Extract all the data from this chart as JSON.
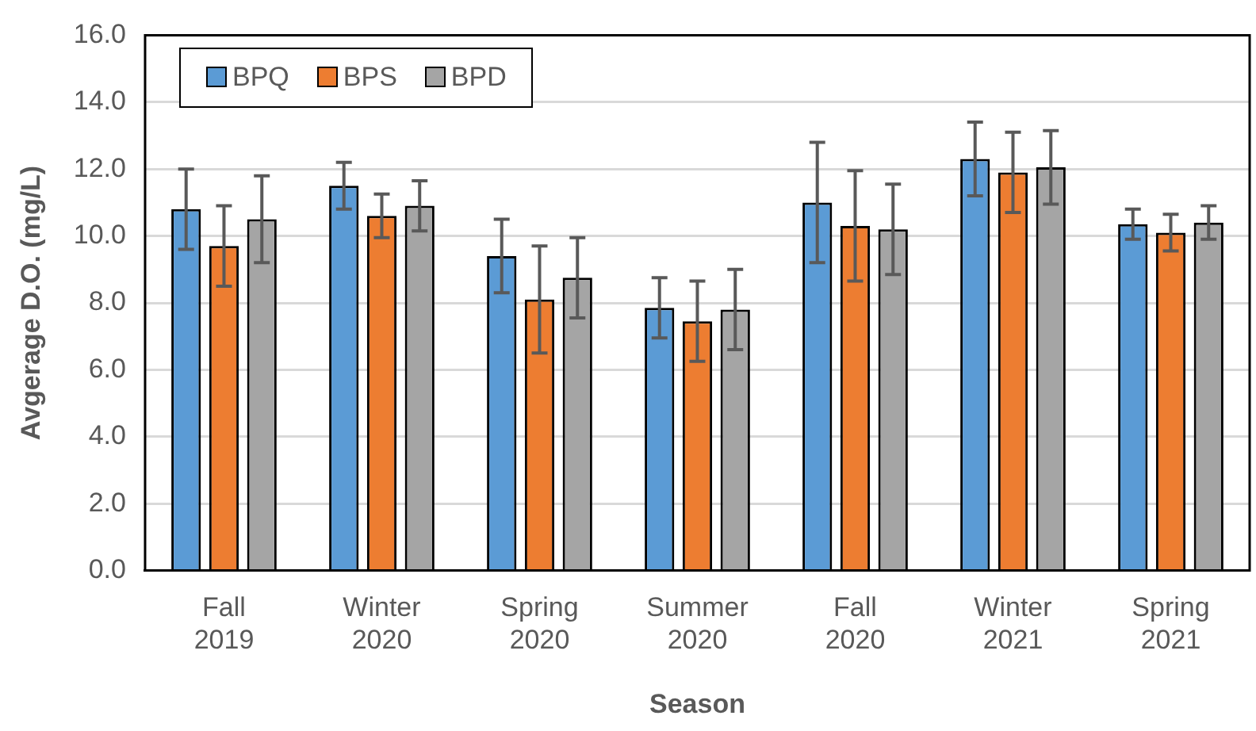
{
  "chart_data": {
    "type": "bar",
    "xlabel": "Season",
    "ylabel": "Avgerage D.O. (mg/L)",
    "categories": [
      "Fall 2019",
      "Winter 2020",
      "Spring 2020",
      "Summer 2020",
      "Fall 2020",
      "Winter 2021",
      "Spring 2021"
    ],
    "series": [
      {
        "name": "BPQ",
        "color": "#5b9bd5",
        "values": [
          10.8,
          11.5,
          9.4,
          7.85,
          11.0,
          12.3,
          10.35
        ],
        "errors": [
          1.2,
          0.7,
          1.1,
          0.9,
          1.8,
          1.1,
          0.45
        ]
      },
      {
        "name": "BPS",
        "color": "#ed7d31",
        "values": [
          9.7,
          10.6,
          8.1,
          7.45,
          10.3,
          11.9,
          10.1
        ],
        "errors": [
          1.2,
          0.65,
          1.6,
          1.2,
          1.65,
          1.2,
          0.55
        ]
      },
      {
        "name": "BPD",
        "color": "#a5a5a5",
        "values": [
          10.5,
          10.9,
          8.75,
          7.8,
          10.2,
          12.05,
          10.4
        ],
        "errors": [
          1.3,
          0.75,
          1.2,
          1.2,
          1.35,
          1.1,
          0.5
        ]
      }
    ],
    "ylim": [
      0,
      16
    ],
    "yticks": [
      {
        "value": 0,
        "label": "0.0"
      },
      {
        "value": 2,
        "label": "2.0"
      },
      {
        "value": 4,
        "label": "4.0"
      },
      {
        "value": 6,
        "label": "6.0"
      },
      {
        "value": 8,
        "label": "8.0"
      },
      {
        "value": 10,
        "label": "10.0"
      },
      {
        "value": 12,
        "label": "12.0"
      },
      {
        "value": 14,
        "label": "14.0"
      },
      {
        "value": 16,
        "label": "16.0"
      }
    ],
    "grid": "y",
    "legend": "top left"
  }
}
